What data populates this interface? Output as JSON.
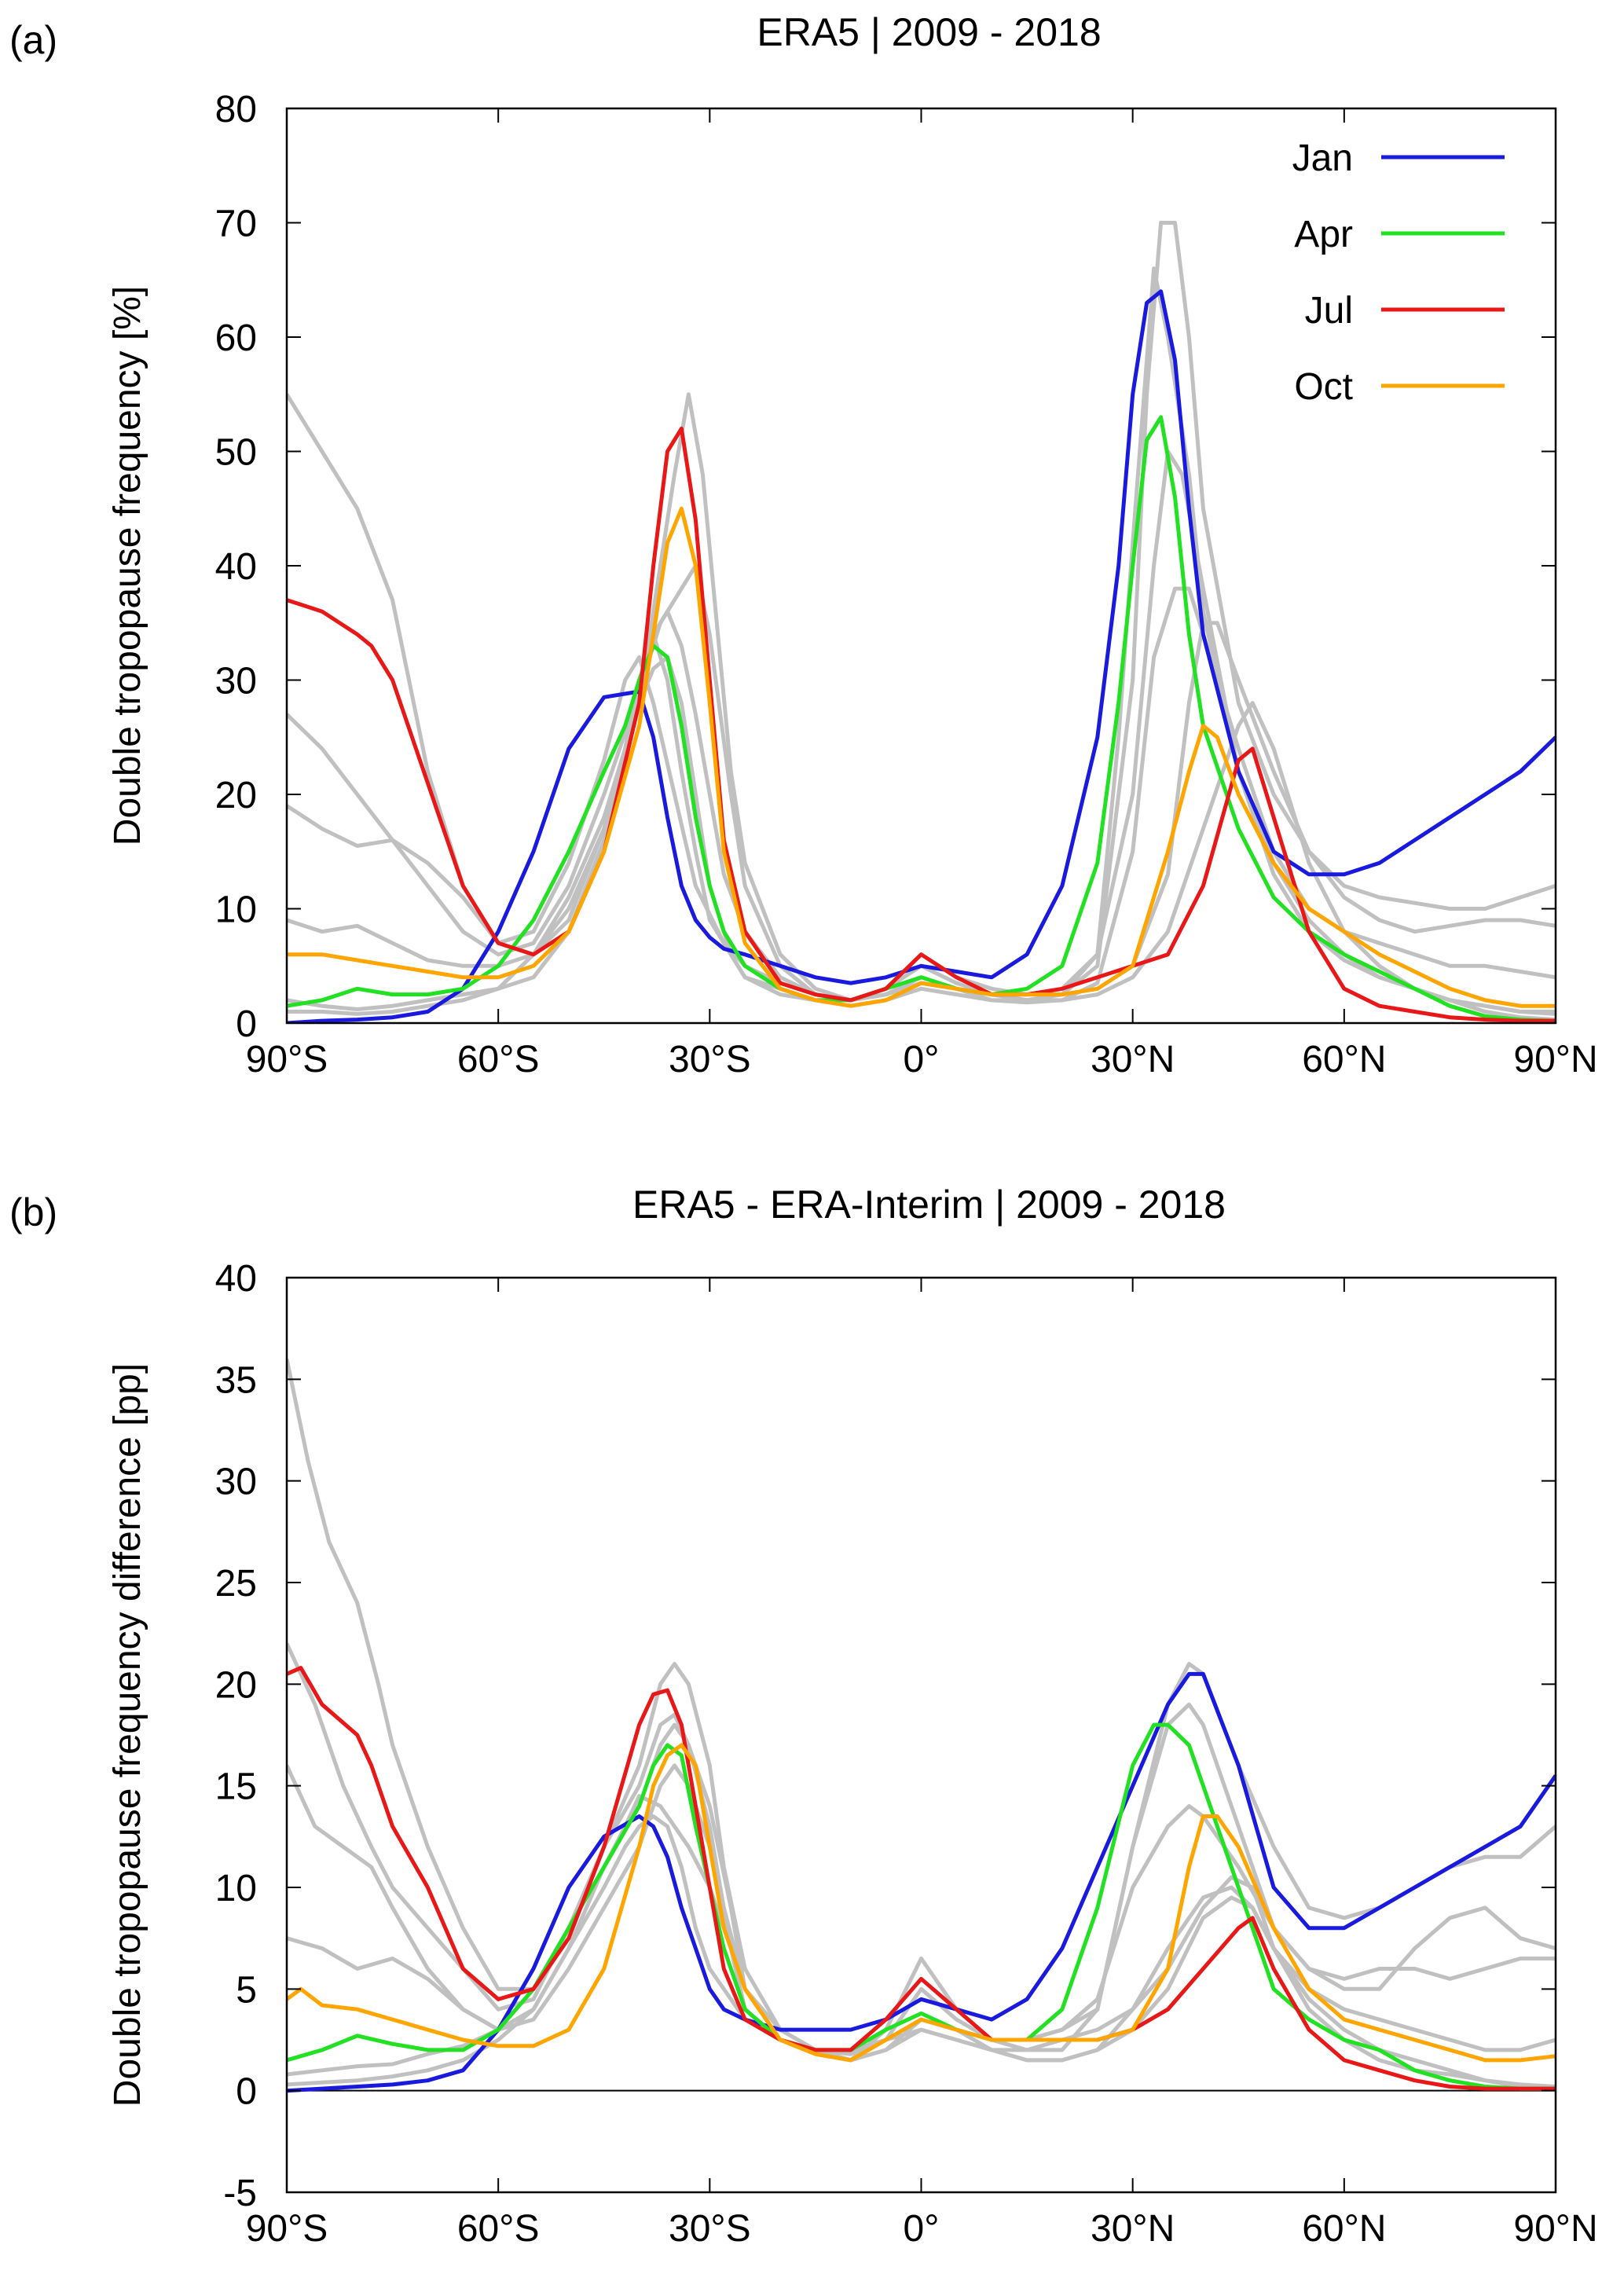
{
  "colors": {
    "gray": "#c0c0c0",
    "Jan": "#1a1adf",
    "Apr": "#22e022",
    "Jul": "#e81818",
    "Oct": "#ffa500"
  },
  "chart_data": [
    {
      "panel_label": "(a)",
      "title": "ERA5 | 2009 - 2018",
      "type": "line",
      "xlabel": "",
      "ylabel": "Double tropopause frequency [%]",
      "xlim": [
        -90,
        90
      ],
      "ylim": [
        0,
        80
      ],
      "xticks": [
        -90,
        -60,
        -30,
        0,
        30,
        60,
        90
      ],
      "xtick_labels": [
        "90°S",
        "60°S",
        "30°S",
        "0°",
        "30°N",
        "60°N",
        "90°N"
      ],
      "yticks": [
        0,
        10,
        20,
        30,
        40,
        50,
        60,
        70,
        80
      ],
      "ytick_labels": [
        "0",
        "10",
        "20",
        "30",
        "40",
        "50",
        "60",
        "70",
        "80"
      ],
      "grid": false,
      "legend_position": "top-right",
      "series": [
        {
          "name": "Jan",
          "x": [
            -90,
            -85,
            -80,
            -75,
            -70,
            -65,
            -60,
            -55,
            -50,
            -45,
            -40,
            -38,
            -36,
            -34,
            -32,
            -30,
            -28,
            -25,
            -20,
            -15,
            -10,
            -5,
            0,
            5,
            10,
            15,
            20,
            25,
            28,
            30,
            32,
            34,
            36,
            38,
            40,
            45,
            50,
            55,
            60,
            65,
            70,
            75,
            80,
            85,
            90
          ],
          "y": [
            0,
            0.2,
            0.3,
            0.5,
            1,
            3,
            8,
            15,
            24,
            28.5,
            29,
            25,
            18,
            12,
            9,
            7.5,
            6.5,
            6,
            5,
            4,
            3.5,
            4,
            5,
            4.5,
            4,
            6,
            12,
            25,
            40,
            55,
            63,
            64,
            58,
            45,
            34,
            22,
            15,
            13,
            13,
            14,
            16,
            18,
            20,
            22,
            25
          ]
        },
        {
          "name": "Apr",
          "x": [
            -90,
            -85,
            -80,
            -75,
            -70,
            -65,
            -60,
            -55,
            -50,
            -45,
            -42,
            -40,
            -38,
            -36,
            -34,
            -32,
            -30,
            -28,
            -25,
            -20,
            -15,
            -10,
            -5,
            0,
            5,
            10,
            15,
            20,
            25,
            28,
            30,
            32,
            34,
            36,
            38,
            40,
            45,
            50,
            55,
            60,
            65,
            70,
            75,
            80,
            85,
            90
          ],
          "y": [
            1.5,
            2,
            3,
            2.5,
            2.5,
            3,
            5,
            9,
            15,
            22,
            26,
            30,
            33,
            32,
            26,
            18,
            12,
            8,
            5,
            3,
            2,
            2,
            3,
            4,
            3,
            2.5,
            3,
            5,
            14,
            28,
            40,
            51,
            53,
            46,
            34,
            26,
            17,
            11,
            8,
            6,
            4.5,
            3,
            1.5,
            0.6,
            0.3,
            0.2
          ]
        },
        {
          "name": "Jul",
          "x": [
            -90,
            -85,
            -80,
            -78,
            -75,
            -70,
            -65,
            -60,
            -55,
            -50,
            -45,
            -40,
            -38,
            -36,
            -34,
            -32,
            -30,
            -28,
            -25,
            -20,
            -15,
            -10,
            -5,
            0,
            5,
            10,
            15,
            20,
            25,
            30,
            35,
            40,
            45,
            47,
            50,
            55,
            60,
            65,
            70,
            75,
            80,
            85,
            90
          ],
          "y": [
            37,
            36,
            34,
            33,
            30,
            21,
            12,
            7,
            6,
            8,
            15,
            28,
            40,
            50,
            52,
            44,
            30,
            16,
            8,
            3.5,
            2.5,
            2,
            3,
            6,
            4,
            2.5,
            2.5,
            3,
            4,
            5,
            6,
            12,
            23,
            24,
            18,
            8,
            3,
            1.5,
            1,
            0.5,
            0.3,
            0.2,
            0.2
          ]
        },
        {
          "name": "Oct",
          "x": [
            -90,
            -85,
            -80,
            -75,
            -70,
            -65,
            -60,
            -55,
            -50,
            -45,
            -40,
            -38,
            -36,
            -34,
            -32,
            -30,
            -28,
            -25,
            -20,
            -15,
            -10,
            -5,
            0,
            5,
            10,
            15,
            20,
            25,
            30,
            35,
            38,
            40,
            42,
            45,
            50,
            55,
            60,
            65,
            70,
            75,
            80,
            85,
            90
          ],
          "y": [
            6,
            6,
            5.5,
            5,
            4.5,
            4,
            4,
            5,
            8,
            15,
            26,
            34,
            42,
            45,
            40,
            28,
            15,
            7,
            3,
            2,
            1.5,
            2,
            3.5,
            3,
            2.5,
            2.5,
            2.5,
            3,
            5,
            15,
            22,
            26,
            25,
            20,
            14,
            10,
            8,
            6,
            4.5,
            3,
            2,
            1.5,
            1.5
          ]
        }
      ]
    },
    {
      "panel_label": "(b)",
      "title": "ERA5 - ERA-Interim | 2009 - 2018",
      "type": "line",
      "xlabel": "",
      "ylabel": "Double tropopause frequency difference [pp]",
      "xlim": [
        -90,
        90
      ],
      "ylim": [
        -5,
        40
      ],
      "xticks": [
        -90,
        -60,
        -30,
        0,
        30,
        60,
        90
      ],
      "xtick_labels": [
        "90°S",
        "60°S",
        "30°S",
        "0°",
        "30°N",
        "60°N",
        "90°N"
      ],
      "yticks": [
        -5,
        0,
        5,
        10,
        15,
        20,
        25,
        30,
        35,
        40
      ],
      "ytick_labels": [
        "-5",
        "0",
        "5",
        "10",
        "15",
        "20",
        "25",
        "30",
        "35",
        "40"
      ],
      "grid": false,
      "series": [
        {
          "name": "Jan",
          "x": [
            -90,
            -85,
            -80,
            -75,
            -70,
            -65,
            -60,
            -55,
            -50,
            -45,
            -40,
            -38,
            -36,
            -34,
            -32,
            -30,
            -28,
            -25,
            -20,
            -15,
            -10,
            -5,
            0,
            5,
            10,
            15,
            20,
            25,
            30,
            35,
            38,
            40,
            45,
            50,
            55,
            60,
            65,
            70,
            75,
            80,
            85,
            90
          ],
          "y": [
            0,
            0.1,
            0.2,
            0.3,
            0.5,
            1,
            3,
            6,
            10,
            12.5,
            13.5,
            13,
            11.5,
            9,
            7,
            5,
            4,
            3.5,
            3,
            3,
            3,
            3.5,
            4.5,
            4,
            3.5,
            4.5,
            7,
            11,
            15,
            19,
            20.5,
            20.5,
            16,
            10,
            8,
            8,
            9,
            10,
            11,
            12,
            13,
            15.5
          ]
        },
        {
          "name": "Apr",
          "x": [
            -90,
            -85,
            -80,
            -75,
            -70,
            -65,
            -60,
            -55,
            -50,
            -45,
            -40,
            -38,
            -36,
            -34,
            -32,
            -30,
            -28,
            -25,
            -20,
            -15,
            -10,
            -5,
            0,
            5,
            10,
            15,
            20,
            25,
            30,
            33,
            35,
            38,
            40,
            45,
            50,
            55,
            60,
            65,
            70,
            75,
            80,
            85,
            90
          ],
          "y": [
            1.5,
            2,
            2.7,
            2.3,
            2,
            2,
            3,
            5,
            8,
            11,
            14,
            16,
            17,
            16.5,
            13,
            10,
            7,
            4,
            2.5,
            2,
            2,
            3,
            3.8,
            3,
            2.5,
            2.5,
            4,
            9,
            16,
            18,
            18,
            17,
            15,
            10,
            5,
            3.5,
            2.5,
            2,
            1,
            0.5,
            0.2,
            0.1,
            0.1
          ]
        },
        {
          "name": "Jul",
          "x": [
            -90,
            -88,
            -85,
            -80,
            -78,
            -75,
            -70,
            -65,
            -60,
            -55,
            -50,
            -45,
            -40,
            -38,
            -36,
            -34,
            -32,
            -30,
            -28,
            -25,
            -20,
            -15,
            -10,
            -5,
            0,
            5,
            10,
            15,
            20,
            25,
            30,
            35,
            40,
            45,
            47,
            50,
            55,
            60,
            65,
            70,
            75,
            80,
            85,
            90
          ],
          "y": [
            20.5,
            20.8,
            19,
            17.5,
            16,
            13,
            10,
            6,
            4.5,
            5,
            7.5,
            12,
            18,
            19.5,
            19.7,
            18,
            14,
            10,
            6,
            3.5,
            2.5,
            2,
            2,
            3.5,
            5.5,
            4,
            2.5,
            2.5,
            2.5,
            2.5,
            3,
            4,
            6,
            8,
            8.5,
            6,
            3,
            1.5,
            1,
            0.5,
            0.2,
            0.1,
            0.1,
            0.1
          ]
        },
        {
          "name": "Oct",
          "x": [
            -90,
            -88,
            -85,
            -80,
            -75,
            -70,
            -65,
            -60,
            -55,
            -50,
            -45,
            -40,
            -38,
            -36,
            -34,
            -32,
            -30,
            -28,
            -25,
            -20,
            -15,
            -10,
            -5,
            0,
            5,
            10,
            15,
            20,
            25,
            30,
            35,
            38,
            40,
            42,
            45,
            50,
            55,
            60,
            65,
            70,
            75,
            80,
            85,
            90
          ],
          "y": [
            4.5,
            5,
            4.2,
            4,
            3.5,
            3,
            2.5,
            2.2,
            2.2,
            3,
            6,
            12,
            15,
            16.5,
            17,
            16,
            12,
            8,
            5,
            2.5,
            1.8,
            1.5,
            2.5,
            3.5,
            3,
            2.5,
            2.5,
            2.5,
            2.5,
            3,
            6,
            11,
            13.5,
            13.5,
            12,
            8,
            5,
            3.5,
            3,
            2.5,
            2,
            1.5,
            1.5,
            1.7
          ]
        }
      ]
    }
  ]
}
